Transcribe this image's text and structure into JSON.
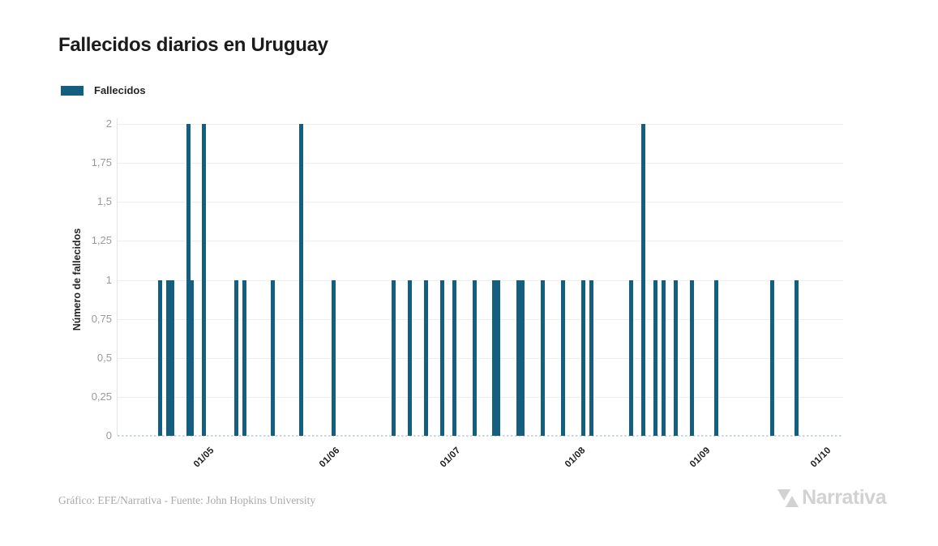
{
  "header": {
    "title": "Fallecidos diarios en Uruguay"
  },
  "legend": {
    "items": [
      {
        "label": "Fallecidos",
        "color": "#145e80"
      }
    ]
  },
  "footer": {
    "credit": "Gráfico: EFE/Narrativa - Fuente: John Hopkins University",
    "brand": "Narrativa"
  },
  "colors": {
    "bar": "#145e80",
    "gridline": "#eeeeee",
    "zero_line": "#c9d7e1",
    "y_tick_text": "#9a9a9a",
    "x_tick_text": "#1d1d1d",
    "title_text": "#1b1b1b",
    "credit_text": "#a9a9a9",
    "brand_text": "#d2d2d2"
  },
  "chart_data": {
    "type": "bar",
    "title": "Fallecidos diarios en Uruguay",
    "xlabel": "",
    "ylabel": "Número de fallecidos",
    "legend_position": "top-left",
    "grid": true,
    "ylim": [
      0,
      2
    ],
    "y_ticks": [
      {
        "value": 0,
        "label": "0"
      },
      {
        "value": 0.25,
        "label": "0,25"
      },
      {
        "value": 0.5,
        "label": "0,5"
      },
      {
        "value": 0.75,
        "label": "0,75"
      },
      {
        "value": 1,
        "label": "1"
      },
      {
        "value": 1.25,
        "label": "1,25"
      },
      {
        "value": 1.5,
        "label": "1,5"
      },
      {
        "value": 1.75,
        "label": "1,75"
      },
      {
        "value": 2,
        "label": "2"
      }
    ],
    "x_domain": [
      "2020-04-11",
      "2020-10-08"
    ],
    "x_ticks": [
      {
        "date": "2020-05-01",
        "label": "01/05"
      },
      {
        "date": "2020-06-01",
        "label": "01/06"
      },
      {
        "date": "2020-07-01",
        "label": "01/07"
      },
      {
        "date": "2020-08-01",
        "label": "01/08"
      },
      {
        "date": "2020-09-01",
        "label": "01/09"
      },
      {
        "date": "2020-10-01",
        "label": "01/10"
      }
    ],
    "series": [
      {
        "name": "Fallecidos",
        "points": [
          {
            "date": "2020-04-21",
            "value": 1
          },
          {
            "date": "2020-04-23",
            "value": 1
          },
          {
            "date": "2020-04-24",
            "value": 1
          },
          {
            "date": "2020-04-28",
            "value": 2
          },
          {
            "date": "2020-04-29",
            "value": 1
          },
          {
            "date": "2020-05-02",
            "value": 2
          },
          {
            "date": "2020-05-10",
            "value": 1
          },
          {
            "date": "2020-05-12",
            "value": 1
          },
          {
            "date": "2020-05-19",
            "value": 1
          },
          {
            "date": "2020-05-26",
            "value": 2
          },
          {
            "date": "2020-06-03",
            "value": 1
          },
          {
            "date": "2020-06-18",
            "value": 1
          },
          {
            "date": "2020-06-22",
            "value": 1
          },
          {
            "date": "2020-06-26",
            "value": 1
          },
          {
            "date": "2020-06-30",
            "value": 1
          },
          {
            "date": "2020-07-03",
            "value": 1
          },
          {
            "date": "2020-07-08",
            "value": 1
          },
          {
            "date": "2020-07-13",
            "value": 1
          },
          {
            "date": "2020-07-14",
            "value": 1
          },
          {
            "date": "2020-07-19",
            "value": 1
          },
          {
            "date": "2020-07-20",
            "value": 1
          },
          {
            "date": "2020-07-25",
            "value": 1
          },
          {
            "date": "2020-07-30",
            "value": 1
          },
          {
            "date": "2020-08-04",
            "value": 1
          },
          {
            "date": "2020-08-06",
            "value": 1
          },
          {
            "date": "2020-08-16",
            "value": 1
          },
          {
            "date": "2020-08-19",
            "value": 2
          },
          {
            "date": "2020-08-22",
            "value": 1
          },
          {
            "date": "2020-08-24",
            "value": 1
          },
          {
            "date": "2020-08-27",
            "value": 1
          },
          {
            "date": "2020-08-31",
            "value": 1
          },
          {
            "date": "2020-09-06",
            "value": 1
          },
          {
            "date": "2020-09-20",
            "value": 1
          },
          {
            "date": "2020-09-26",
            "value": 1
          }
        ]
      }
    ]
  }
}
